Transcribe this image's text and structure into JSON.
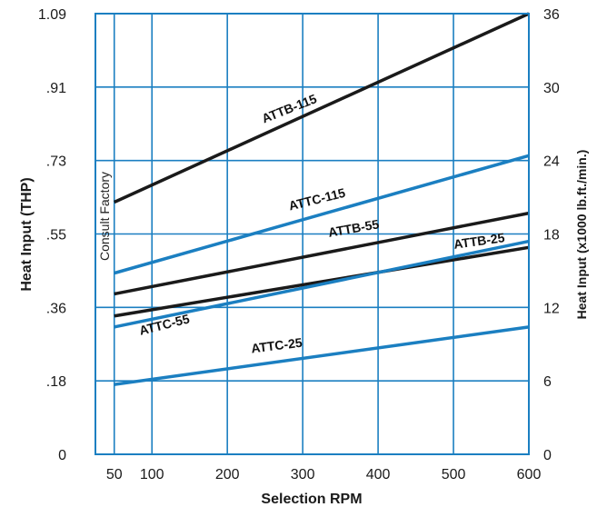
{
  "chart_data": {
    "type": "line",
    "title": "",
    "xlabel": "Selection RPM",
    "ylabel_left": "Heat Input (THP)",
    "ylabel_right": "Heat Input (x1000 lb.ft./min.)",
    "xlim": [
      25,
      600
    ],
    "ylim_right": [
      0,
      36
    ],
    "x_tick_labels": [
      "50",
      "100",
      "200",
      "300",
      "400",
      "500",
      "600"
    ],
    "x_ticks": [
      50,
      100,
      200,
      300,
      400,
      500,
      600
    ],
    "y_left_tick_labels": [
      "0",
      ".18",
      ".36",
      ".55",
      ".73",
      ".91",
      "1.09"
    ],
    "y_right_ticks": [
      0,
      6,
      12,
      18,
      24,
      30,
      36
    ],
    "y_right_tick_labels": [
      "0",
      "6",
      "12",
      "18",
      "24",
      "30",
      "36"
    ],
    "grid": true,
    "annotation": "Consult Factory",
    "series": [
      {
        "name": "ATTB-115",
        "color": "#1a1a1a",
        "x": [
          50,
          600
        ],
        "y": [
          20.6,
          36.0
        ]
      },
      {
        "name": "ATTC-115",
        "color": "#1b7fc1",
        "x": [
          50,
          600
        ],
        "y": [
          14.8,
          24.4
        ]
      },
      {
        "name": "ATTB-55",
        "color": "#1a1a1a",
        "x": [
          50,
          600
        ],
        "y": [
          13.1,
          19.7
        ]
      },
      {
        "name": "ATTB-25",
        "color": "#1a1a1a",
        "x": [
          50,
          600
        ],
        "y": [
          11.3,
          16.9
        ]
      },
      {
        "name": "ATTC-55",
        "color": "#1b7fc1",
        "x": [
          50,
          600
        ],
        "y": [
          10.4,
          17.4
        ]
      },
      {
        "name": "ATTC-25",
        "color": "#1b7fc1",
        "x": [
          50,
          600
        ],
        "y": [
          5.7,
          10.4
        ]
      }
    ]
  }
}
